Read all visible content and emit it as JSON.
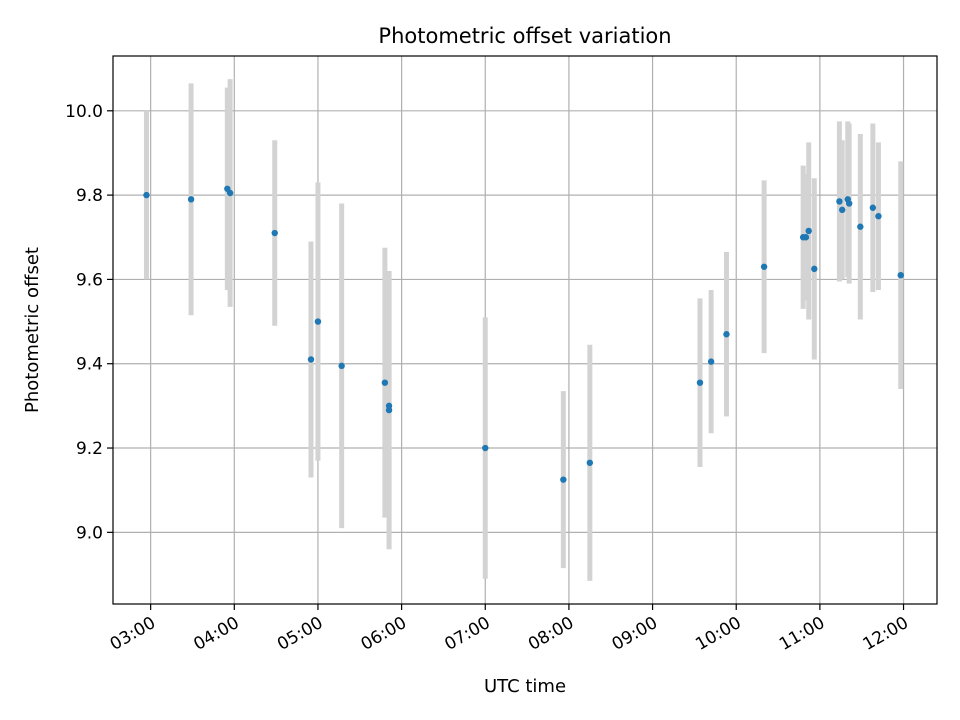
{
  "chart_data": {
    "type": "scatter",
    "title": "Photometric offset variation",
    "xlabel": "UTC time",
    "ylabel": "Photometric offset",
    "xlim": [
      "02:33",
      "12:24"
    ],
    "ylim": [
      8.83,
      10.13
    ],
    "x_ticks": [
      "03:00",
      "04:00",
      "05:00",
      "06:00",
      "07:00",
      "08:00",
      "09:00",
      "10:00",
      "11:00",
      "12:00"
    ],
    "y_ticks": [
      "9.0",
      "9.2",
      "9.4",
      "9.6",
      "9.8",
      "10.0"
    ],
    "grid": true,
    "colors": {
      "point": "#1f77b4",
      "errorbar": "#d3d3d3"
    },
    "series": [
      {
        "points": [
          {
            "x": "02:57",
            "y": 9.8,
            "err": 0.2
          },
          {
            "x": "03:29",
            "y": 9.79,
            "err": 0.275
          },
          {
            "x": "03:55",
            "y": 9.815,
            "err": 0.24
          },
          {
            "x": "03:57",
            "y": 9.805,
            "err": 0.27
          },
          {
            "x": "04:29",
            "y": 9.71,
            "err": 0.22
          },
          {
            "x": "04:55",
            "y": 9.41,
            "err": 0.28
          },
          {
            "x": "05:00",
            "y": 9.5,
            "err": 0.33
          },
          {
            "x": "05:17",
            "y": 9.395,
            "err": 0.385
          },
          {
            "x": "05:48",
            "y": 9.355,
            "err": 0.32
          },
          {
            "x": "05:51",
            "y": 9.3,
            "err": 0.32
          },
          {
            "x": "05:51",
            "y": 9.29,
            "err": 0.33
          },
          {
            "x": "07:00",
            "y": 9.2,
            "err": 0.31
          },
          {
            "x": "07:56",
            "y": 9.125,
            "err": 0.21
          },
          {
            "x": "08:15",
            "y": 9.165,
            "err": 0.28
          },
          {
            "x": "09:34",
            "y": 9.355,
            "err": 0.2
          },
          {
            "x": "09:42",
            "y": 9.405,
            "err": 0.17
          },
          {
            "x": "09:53",
            "y": 9.47,
            "err": 0.195
          },
          {
            "x": "10:20",
            "y": 9.63,
            "err": 0.205
          },
          {
            "x": "10:48",
            "y": 9.7,
            "err": 0.17
          },
          {
            "x": "10:50",
            "y": 9.7,
            "err": 0.15
          },
          {
            "x": "10:52",
            "y": 9.715,
            "err": 0.21
          },
          {
            "x": "10:56",
            "y": 9.625,
            "err": 0.215
          },
          {
            "x": "11:14",
            "y": 9.785,
            "err": 0.19
          },
          {
            "x": "11:16",
            "y": 9.765,
            "err": 0.165
          },
          {
            "x": "11:20",
            "y": 9.79,
            "err": 0.185
          },
          {
            "x": "11:21",
            "y": 9.78,
            "err": 0.19
          },
          {
            "x": "11:29",
            "y": 9.725,
            "err": 0.22
          },
          {
            "x": "11:38",
            "y": 9.77,
            "err": 0.2
          },
          {
            "x": "11:42",
            "y": 9.75,
            "err": 0.175
          },
          {
            "x": "11:58",
            "y": 9.61,
            "err": 0.27
          }
        ]
      }
    ]
  }
}
